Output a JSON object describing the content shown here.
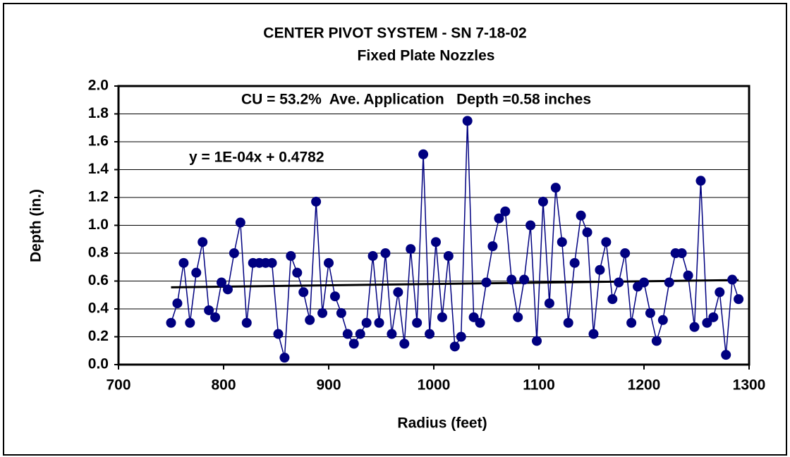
{
  "chart_data": {
    "type": "scatter",
    "title": "CENTER PIVOT SYSTEM - SN 7-18-02",
    "subtitle": "Fixed Plate Nozzles",
    "annotations": [
      "CU = 53.2%  Ave. Application   Depth =0.58 inches",
      "y = 1E-04x + 0.4782"
    ],
    "x_label": "Radius (feet)",
    "y_label": "Depth (in.)",
    "x": [
      750,
      756,
      762,
      768,
      774,
      780,
      786,
      792,
      798,
      804,
      810,
      816,
      822,
      828,
      834,
      840,
      846,
      852,
      858,
      864,
      870,
      876,
      882,
      888,
      894,
      900,
      906,
      912,
      918,
      924,
      930,
      936,
      942,
      948,
      954,
      960,
      966,
      972,
      978,
      984,
      990,
      996,
      1002,
      1008,
      1014,
      1020,
      1026,
      1032,
      1038,
      1044,
      1050,
      1056,
      1062,
      1068,
      1074,
      1080,
      1086,
      1092,
      1098,
      1104,
      1110,
      1116,
      1122,
      1128,
      1134,
      1140,
      1146,
      1152,
      1158,
      1164,
      1170,
      1176,
      1182,
      1188,
      1194,
      1200,
      1206,
      1212,
      1218,
      1224,
      1230,
      1236,
      1242,
      1248,
      1254,
      1260,
      1266,
      1272,
      1278,
      1284,
      1290
    ],
    "series": [
      {
        "color": "#000080",
        "values": [
          0.3,
          0.44,
          0.73,
          0.3,
          0.66,
          0.88,
          0.39,
          0.34,
          0.59,
          0.54,
          0.8,
          1.02,
          0.3,
          0.73,
          0.73,
          0.73,
          0.73,
          0.22,
          0.05,
          0.78,
          0.66,
          0.52,
          0.32,
          1.17,
          0.37,
          0.73,
          0.49,
          0.37,
          0.22,
          0.15,
          0.22,
          0.3,
          0.78,
          0.3,
          0.8,
          0.22,
          0.52,
          0.15,
          0.83,
          0.3,
          1.51,
          0.22,
          0.88,
          0.34,
          0.78,
          0.13,
          0.2,
          1.75,
          0.34,
          0.3,
          0.59,
          0.85,
          1.05,
          1.1,
          0.61,
          0.34,
          0.61,
          1.0,
          0.17,
          1.17,
          0.44,
          1.27,
          0.88,
          0.3,
          0.73,
          1.07,
          0.95,
          0.22,
          0.68,
          0.88,
          0.47,
          0.59,
          0.8,
          0.3,
          0.56,
          0.59,
          0.37,
          0.17,
          0.32,
          0.59,
          0.8,
          0.8,
          0.64,
          0.27,
          1.32,
          0.3,
          0.34,
          0.52,
          0.07,
          0.61,
          0.47
        ]
      }
    ],
    "trendline": {
      "color": "#000000",
      "x": [
        750,
        1290
      ],
      "values": [
        0.555,
        0.607
      ]
    },
    "xlim": [
      700,
      1300
    ],
    "xticks": [
      700,
      800,
      900,
      1000,
      1100,
      1200,
      1300
    ],
    "ylim": [
      0,
      2
    ],
    "yticks": [
      {
        "value": 0,
        "label": "0.0"
      },
      0.2,
      0.4,
      0.6,
      0.8,
      {
        "value": 1,
        "label": "1.0"
      },
      1.2,
      1.4,
      1.6,
      1.8,
      {
        "value": 2,
        "label": "2.0"
      }
    ],
    "grid": true
  }
}
